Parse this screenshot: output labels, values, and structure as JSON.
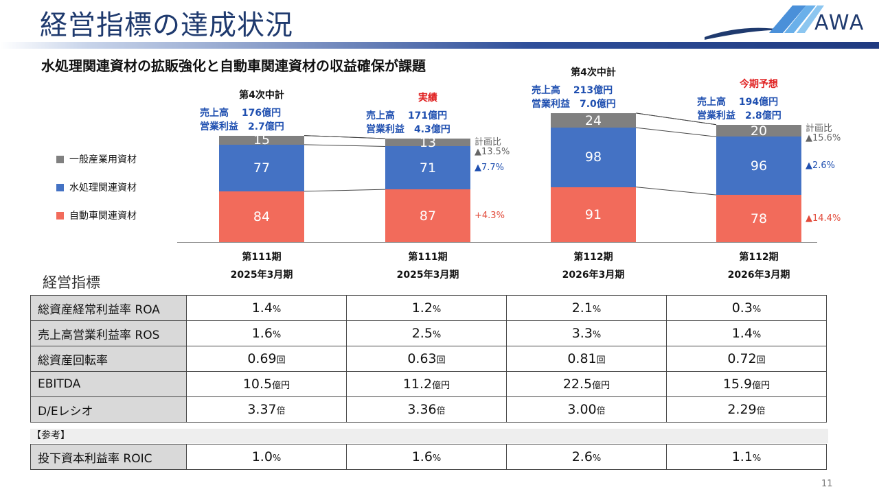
{
  "title": "経営指標の達成状況",
  "logo_text": "AWA",
  "subtitle": "水処理関連資材の拡販強化と自動車関連資材の収益確保が課題",
  "colors": {
    "general": "#808080",
    "water": "#4472c4",
    "auto": "#f26b5b",
    "blue_text": "#1f4fb0",
    "red_text": "#e02020"
  },
  "legend": [
    "一般産業用資材",
    "水処理関連資材",
    "自動車関連資材"
  ],
  "chart_data": {
    "type": "bar",
    "stacked": true,
    "categories": [
      "第111期 2025年3月期",
      "第111期 2025年3月期",
      "第112期 2026年3月期",
      "第112期 2026年3月期"
    ],
    "series": [
      {
        "name": "自動車関連資材",
        "values": [
          84,
          87,
          91,
          78
        ]
      },
      {
        "name": "水処理関連資材",
        "values": [
          77,
          71,
          98,
          96
        ]
      },
      {
        "name": "一般産業用資材",
        "values": [
          15,
          13,
          24,
          20
        ]
      }
    ]
  },
  "columns": [
    {
      "plan": "第4次中計",
      "plan_red": false,
      "sales": "売上高　 176億円",
      "profit": "営業利益　2.7億円",
      "period": "第111期",
      "fy": "2025年3月期",
      "deltas": null
    },
    {
      "plan": "実績",
      "plan_red": true,
      "sales": "売上高　 171億円",
      "profit": "営業利益　4.3億円",
      "period": "第111期",
      "fy": "2025年3月期",
      "deltas": {
        "label": "計画比",
        "general": "▲13.5%",
        "water": "▲7.7%",
        "auto": "+4.3%"
      }
    },
    {
      "plan": "第4次中計",
      "plan_red": false,
      "sales": "売上高　 213億円",
      "profit": "営業利益　7.0億円",
      "period": "第112期",
      "fy": "2026年3月期",
      "deltas": null
    },
    {
      "plan": "今期予想",
      "plan_red": true,
      "sales": "売上高　 194億円",
      "profit": "営業利益　2.8億円",
      "period": "第112期",
      "fy": "2026年3月期",
      "deltas": {
        "label": "計画比",
        "general": "▲15.6%",
        "water": "▲2.6%",
        "auto": "▲14.4%"
      }
    }
  ],
  "kpi_title": "経営指標",
  "kpi_rows": [
    {
      "label": "総資産経常利益率 ROA",
      "values": [
        "1.4",
        "1.2",
        "2.1",
        "0.3"
      ],
      "unit": "%"
    },
    {
      "label": "売上高営業利益率 ROS",
      "values": [
        "1.6",
        "2.5",
        "3.3",
        "1.4"
      ],
      "unit": "%"
    },
    {
      "label": "総資産回転率",
      "values": [
        "0.69",
        "0.63",
        "0.81",
        "0.72"
      ],
      "unit": "回"
    },
    {
      "label": "EBITDA",
      "values": [
        "10.5",
        "11.2",
        "22.5",
        "15.9"
      ],
      "unit": "億円"
    },
    {
      "label": "D/Eレシオ",
      "values": [
        "3.37",
        "3.36",
        "3.00",
        "2.29"
      ],
      "unit": "倍"
    }
  ],
  "reference_label": "【参考】",
  "roic_row": {
    "label": "投下資本利益率 ROIC",
    "values": [
      "1.0",
      "1.6",
      "2.6",
      "1.1"
    ],
    "unit": "%"
  },
  "page_number": "11"
}
